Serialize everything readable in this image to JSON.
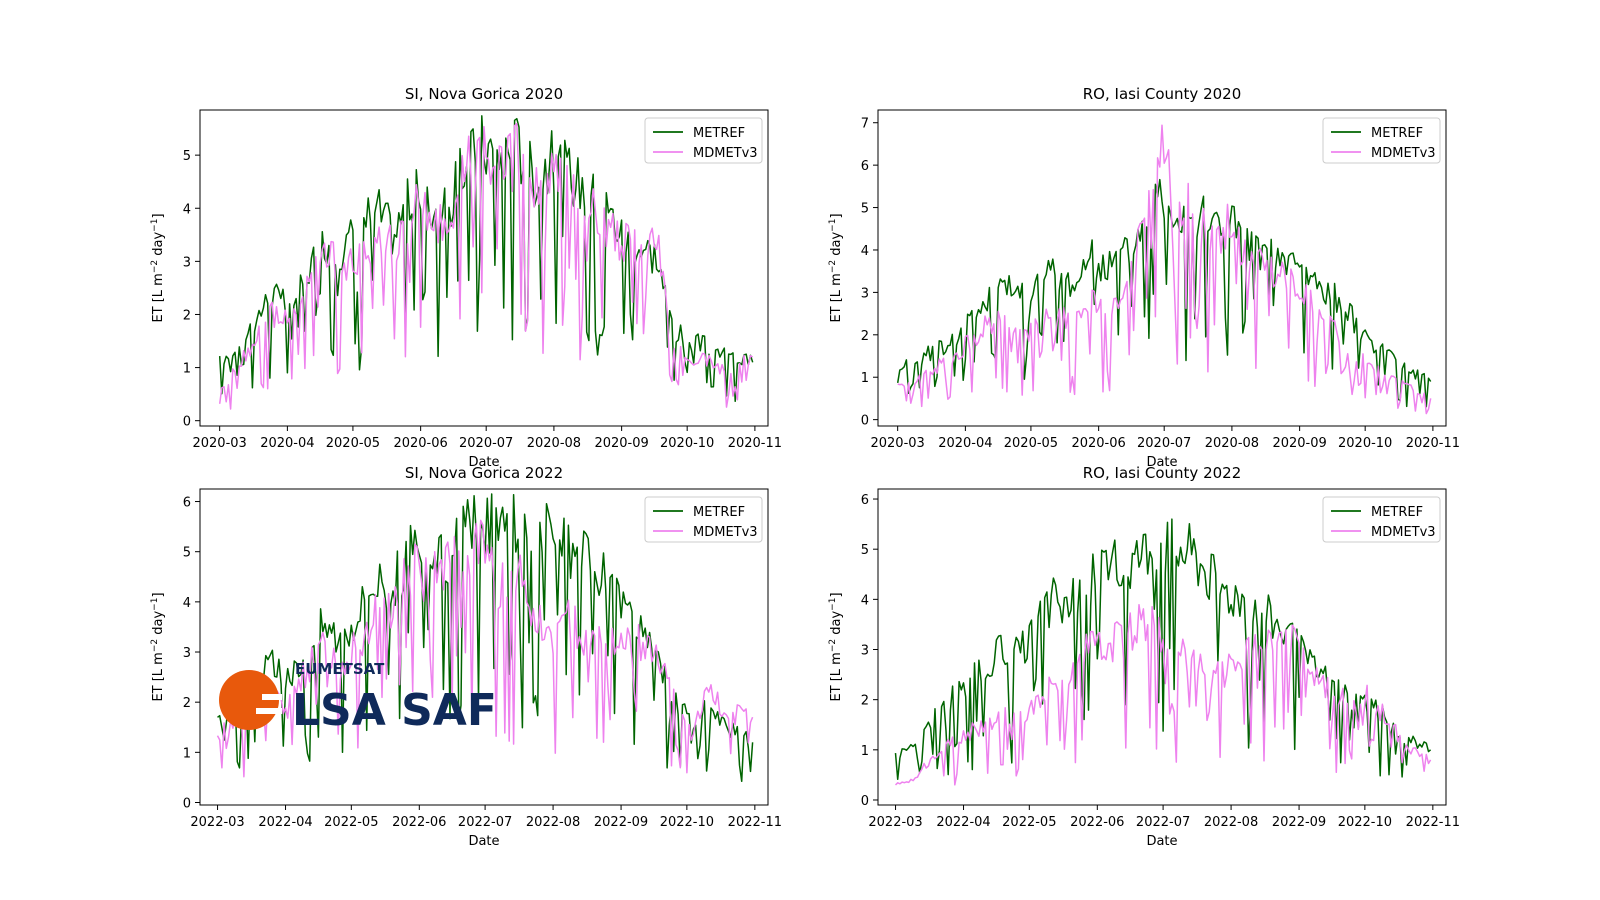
{
  "colors": {
    "metref": "#006400",
    "mdmetv3": "#ee82ee",
    "logo_orange": "#e8590c",
    "logo_navy": "#0f2a5a"
  },
  "logo": {
    "top_text": "EUMETSAT",
    "main_text": "LSA SAF"
  },
  "chart_data": [
    {
      "type": "line",
      "title": "SI, Nova Gorica 2020",
      "xlabel": "Date",
      "ylabel_base": "ET [L m",
      "ylabel_exp1": "−2",
      "ylabel_mid": " day",
      "ylabel_exp2": "−1",
      "ylabel_end": "]",
      "ylim": [
        -0.1,
        5.85
      ],
      "yticks": [
        "0",
        "1",
        "2",
        "3",
        "4",
        "5"
      ],
      "xlim": [
        "2020-02-21",
        "2020-11-07"
      ],
      "xticks": [
        "2020-03",
        "2020-04",
        "2020-05",
        "2020-06",
        "2020-07",
        "2020-08",
        "2020-09",
        "2020-10",
        "2020-11"
      ],
      "legend_position": "upper-right",
      "series": [
        {
          "name": "METREF",
          "x": [
            "2020-03-01",
            "2020-03-09",
            "2020-03-17",
            "2020-03-25",
            "2020-04-02",
            "2020-04-10",
            "2020-04-18",
            "2020-04-26",
            "2020-05-04",
            "2020-05-12",
            "2020-05-20",
            "2020-05-28",
            "2020-06-05",
            "2020-06-13",
            "2020-06-21",
            "2020-06-29",
            "2020-07-07",
            "2020-07-15",
            "2020-07-23",
            "2020-07-31",
            "2020-08-08",
            "2020-08-16",
            "2020-08-24",
            "2020-09-01",
            "2020-09-09",
            "2020-09-17",
            "2020-09-25",
            "2020-10-03",
            "2020-10-11",
            "2020-10-19",
            "2020-10-31"
          ],
          "y": [
            1.1,
            1.4,
            1.9,
            2.4,
            2.1,
            2.8,
            3.4,
            3.2,
            3.7,
            4.0,
            3.5,
            4.3,
            4.0,
            3.9,
            4.8,
            5.2,
            5.0,
            5.2,
            4.6,
            4.9,
            4.7,
            4.3,
            4.1,
            3.5,
            3.3,
            3.1,
            1.7,
            1.5,
            1.4,
            1.2,
            1.1
          ]
        },
        {
          "name": "MDMETv3",
          "x": [
            "2020-03-01",
            "2020-03-09",
            "2020-03-17",
            "2020-03-25",
            "2020-04-02",
            "2020-04-10",
            "2020-04-18",
            "2020-04-26",
            "2020-05-04",
            "2020-05-12",
            "2020-05-20",
            "2020-05-28",
            "2020-06-05",
            "2020-06-13",
            "2020-06-21",
            "2020-06-29",
            "2020-07-07",
            "2020-07-15",
            "2020-07-23",
            "2020-07-31",
            "2020-08-08",
            "2020-08-16",
            "2020-08-24",
            "2020-09-01",
            "2020-09-09",
            "2020-09-17",
            "2020-09-25",
            "2020-10-03",
            "2020-10-11",
            "2020-10-19",
            "2020-10-31"
          ],
          "y": [
            0.5,
            1.0,
            1.5,
            2.0,
            1.8,
            2.5,
            3.3,
            2.8,
            3.0,
            3.6,
            3.2,
            4.0,
            3.8,
            3.6,
            4.7,
            5.1,
            4.6,
            5.0,
            4.2,
            4.6,
            4.4,
            4.1,
            3.8,
            3.3,
            3.4,
            3.5,
            1.3,
            1.2,
            1.1,
            0.9,
            1.2
          ]
        }
      ]
    },
    {
      "type": "line",
      "title": "RO, Iasi County 2020",
      "xlabel": "Date",
      "ylabel_base": "ET [L m",
      "ylabel_exp1": "−2",
      "ylabel_mid": " day",
      "ylabel_exp2": "−1",
      "ylabel_end": "]",
      "ylim": [
        -0.15,
        7.3
      ],
      "yticks": [
        "0",
        "1",
        "2",
        "3",
        "4",
        "5",
        "6",
        "7"
      ],
      "xlim": [
        "2020-02-21",
        "2020-11-07"
      ],
      "xticks": [
        "2020-03",
        "2020-04",
        "2020-05",
        "2020-06",
        "2020-07",
        "2020-08",
        "2020-09",
        "2020-10",
        "2020-11"
      ],
      "legend_position": "upper-right",
      "series": [
        {
          "name": "METREF",
          "x": [
            "2020-03-01",
            "2020-03-09",
            "2020-03-17",
            "2020-03-25",
            "2020-04-02",
            "2020-04-10",
            "2020-04-18",
            "2020-04-26",
            "2020-05-04",
            "2020-05-12",
            "2020-05-20",
            "2020-05-28",
            "2020-06-05",
            "2020-06-13",
            "2020-06-21",
            "2020-06-29",
            "2020-07-07",
            "2020-07-15",
            "2020-07-23",
            "2020-07-31",
            "2020-08-08",
            "2020-08-16",
            "2020-08-24",
            "2020-09-01",
            "2020-09-09",
            "2020-09-17",
            "2020-09-25",
            "2020-10-03",
            "2020-10-11",
            "2020-10-19",
            "2020-10-31"
          ],
          "y": [
            1.3,
            1.4,
            1.6,
            1.8,
            2.3,
            2.8,
            3.1,
            3.0,
            3.3,
            3.5,
            3.2,
            3.8,
            3.6,
            3.9,
            4.6,
            5.4,
            5.0,
            4.9,
            4.6,
            4.8,
            4.1,
            4.0,
            3.8,
            3.6,
            3.2,
            2.9,
            2.4,
            1.9,
            1.5,
            1.2,
            0.9
          ]
        },
        {
          "name": "MDMETv3",
          "x": [
            "2020-03-01",
            "2020-03-09",
            "2020-03-17",
            "2020-03-25",
            "2020-04-02",
            "2020-04-10",
            "2020-04-18",
            "2020-04-26",
            "2020-05-04",
            "2020-05-12",
            "2020-05-20",
            "2020-05-28",
            "2020-06-05",
            "2020-06-13",
            "2020-06-21",
            "2020-06-29",
            "2020-07-07",
            "2020-07-15",
            "2020-07-23",
            "2020-07-31",
            "2020-08-08",
            "2020-08-16",
            "2020-08-24",
            "2020-09-01",
            "2020-09-09",
            "2020-09-17",
            "2020-09-25",
            "2020-10-03",
            "2020-10-11",
            "2020-10-19",
            "2020-10-31"
          ],
          "y": [
            0.8,
            0.9,
            1.2,
            1.4,
            1.8,
            2.2,
            2.3,
            2.0,
            2.2,
            2.5,
            2.2,
            2.8,
            2.4,
            3.0,
            4.4,
            6.4,
            5.2,
            4.8,
            4.1,
            4.6,
            3.9,
            3.7,
            3.3,
            3.1,
            2.5,
            2.1,
            1.6,
            1.3,
            1.0,
            0.8,
            0.5
          ]
        }
      ]
    },
    {
      "type": "line",
      "title": "SI, Nova Gorica 2022",
      "xlabel": "Date",
      "ylabel_base": "ET [L m",
      "ylabel_exp1": "−2",
      "ylabel_mid": " day",
      "ylabel_exp2": "−1",
      "ylabel_end": "]",
      "ylim": [
        -0.05,
        6.25
      ],
      "yticks": [
        "0",
        "1",
        "2",
        "3",
        "4",
        "5",
        "6"
      ],
      "xlim": [
        "2022-02-21",
        "2022-11-07"
      ],
      "xticks": [
        "2022-03",
        "2022-04",
        "2022-05",
        "2022-06",
        "2022-07",
        "2022-08",
        "2022-09",
        "2022-10",
        "2022-11"
      ],
      "legend_position": "upper-right",
      "series": [
        {
          "name": "METREF",
          "x": [
            "2022-03-01",
            "2022-03-09",
            "2022-03-17",
            "2022-03-25",
            "2022-04-02",
            "2022-04-10",
            "2022-04-18",
            "2022-04-26",
            "2022-05-04",
            "2022-05-12",
            "2022-05-20",
            "2022-05-28",
            "2022-06-05",
            "2022-06-13",
            "2022-06-21",
            "2022-06-29",
            "2022-07-07",
            "2022-07-15",
            "2022-07-23",
            "2022-07-31",
            "2022-08-08",
            "2022-08-16",
            "2022-08-24",
            "2022-09-01",
            "2022-09-09",
            "2022-09-17",
            "2022-09-25",
            "2022-10-03",
            "2022-10-11",
            "2022-10-19",
            "2022-10-31"
          ],
          "y": [
            1.6,
            1.9,
            2.2,
            2.8,
            2.4,
            3.0,
            3.6,
            3.3,
            3.8,
            4.5,
            4.3,
            5.0,
            4.6,
            4.9,
            5.3,
            5.6,
            5.5,
            5.6,
            5.4,
            5.3,
            5.0,
            4.8,
            4.5,
            4.0,
            3.4,
            2.9,
            2.0,
            1.6,
            1.9,
            1.5,
            1.2
          ]
        },
        {
          "name": "MDMETv3",
          "x": [
            "2022-03-01",
            "2022-03-09",
            "2022-03-17",
            "2022-03-25",
            "2022-04-02",
            "2022-04-10",
            "2022-04-18",
            "2022-04-26",
            "2022-05-04",
            "2022-05-12",
            "2022-05-20",
            "2022-05-28",
            "2022-06-05",
            "2022-06-13",
            "2022-06-21",
            "2022-06-29",
            "2022-07-07",
            "2022-07-15",
            "2022-07-23",
            "2022-07-31",
            "2022-08-08",
            "2022-08-16",
            "2022-08-24",
            "2022-09-01",
            "2022-09-09",
            "2022-09-17",
            "2022-09-25",
            "2022-10-03",
            "2022-10-11",
            "2022-10-19",
            "2022-10-31"
          ],
          "y": [
            1.3,
            1.6,
            1.8,
            2.2,
            1.9,
            2.6,
            3.2,
            2.8,
            3.1,
            3.9,
            3.8,
            4.7,
            4.4,
            4.7,
            5.1,
            5.0,
            4.4,
            4.6,
            3.8,
            3.3,
            3.7,
            3.3,
            3.1,
            3.1,
            3.2,
            3.0,
            2.1,
            1.4,
            2.2,
            1.8,
            1.7
          ]
        }
      ]
    },
    {
      "type": "line",
      "title": "RO, Iasi County 2022",
      "xlabel": "Date",
      "ylabel_base": "ET [L m",
      "ylabel_exp1": "−2",
      "ylabel_mid": " day",
      "ylabel_exp2": "−1",
      "ylabel_end": "]",
      "ylim": [
        -0.1,
        6.2
      ],
      "yticks": [
        "0",
        "1",
        "2",
        "3",
        "4",
        "5",
        "6"
      ],
      "xlim": [
        "2022-02-21",
        "2022-11-07"
      ],
      "xticks": [
        "2022-03",
        "2022-04",
        "2022-05",
        "2022-06",
        "2022-07",
        "2022-08",
        "2022-09",
        "2022-10",
        "2022-11"
      ],
      "legend_position": "upper-right",
      "series": [
        {
          "name": "METREF",
          "x": [
            "2022-03-01",
            "2022-03-09",
            "2022-03-17",
            "2022-03-25",
            "2022-04-02",
            "2022-04-10",
            "2022-04-18",
            "2022-04-26",
            "2022-05-04",
            "2022-05-12",
            "2022-05-20",
            "2022-05-28",
            "2022-06-05",
            "2022-06-13",
            "2022-06-21",
            "2022-06-29",
            "2022-07-07",
            "2022-07-15",
            "2022-07-23",
            "2022-07-31",
            "2022-08-08",
            "2022-08-16",
            "2022-08-24",
            "2022-09-01",
            "2022-09-09",
            "2022-09-17",
            "2022-09-25",
            "2022-10-03",
            "2022-10-11",
            "2022-10-19",
            "2022-10-31"
          ],
          "y": [
            0.9,
            1.1,
            1.5,
            2.0,
            2.3,
            2.6,
            3.0,
            2.9,
            3.4,
            4.0,
            3.9,
            4.4,
            4.6,
            4.7,
            5.0,
            5.2,
            5.1,
            5.0,
            4.5,
            4.2,
            4.1,
            3.8,
            3.5,
            3.0,
            2.6,
            2.4,
            2.0,
            2.0,
            1.6,
            1.2,
            1.0
          ]
        },
        {
          "name": "MDMETv3",
          "x": [
            "2022-03-01",
            "2022-03-09",
            "2022-03-17",
            "2022-03-25",
            "2022-04-02",
            "2022-04-10",
            "2022-04-18",
            "2022-04-26",
            "2022-05-04",
            "2022-05-12",
            "2022-05-20",
            "2022-05-28",
            "2022-06-05",
            "2022-06-13",
            "2022-06-21",
            "2022-06-29",
            "2022-07-07",
            "2022-07-15",
            "2022-07-23",
            "2022-07-31",
            "2022-08-08",
            "2022-08-16",
            "2022-08-24",
            "2022-09-01",
            "2022-09-09",
            "2022-09-17",
            "2022-09-25",
            "2022-10-03",
            "2022-10-11",
            "2022-10-19",
            "2022-10-31"
          ],
          "y": [
            0.3,
            0.4,
            0.8,
            1.1,
            1.3,
            1.5,
            1.7,
            1.6,
            1.9,
            2.3,
            2.5,
            3.0,
            3.1,
            3.2,
            3.6,
            3.4,
            2.9,
            2.8,
            2.4,
            2.6,
            2.9,
            3.1,
            3.3,
            3.1,
            2.4,
            2.1,
            1.9,
            2.1,
            1.6,
            1.1,
            0.8
          ]
        }
      ]
    }
  ]
}
